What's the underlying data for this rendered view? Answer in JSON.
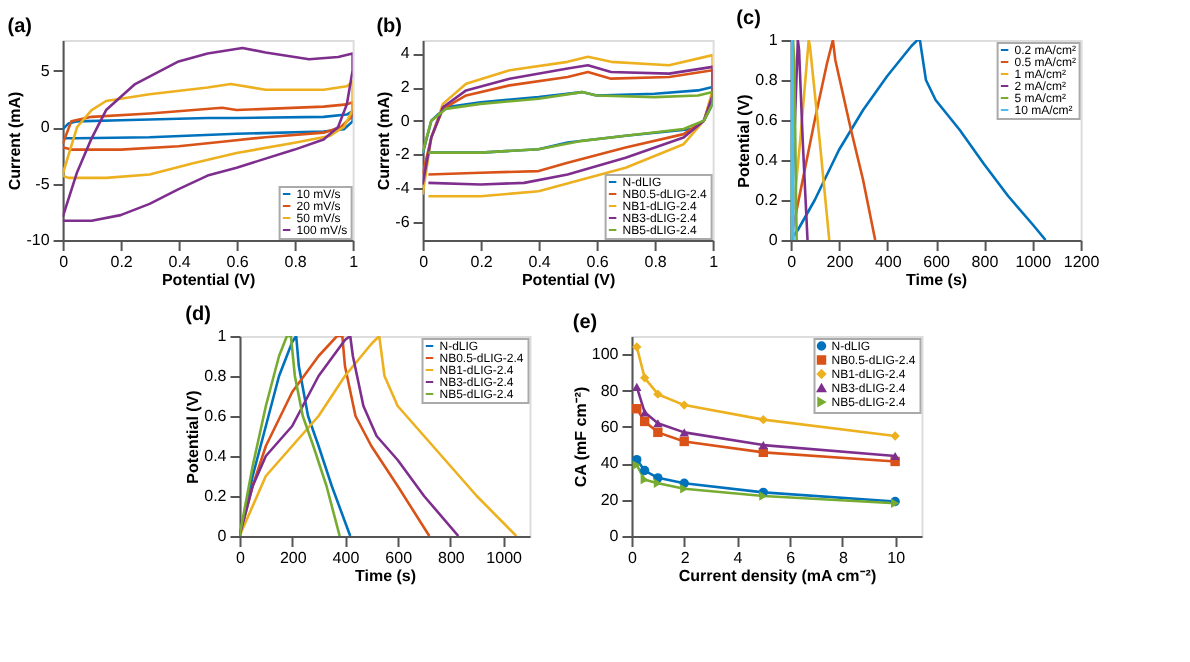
{
  "chart_data": [
    {
      "type": "line",
      "title": "(a)",
      "xlabel": "Potential (V)",
      "ylabel": "Current (mA)",
      "xlim": [
        0,
        1
      ],
      "xticks": [
        0,
        0.2,
        0.4,
        0.6,
        0.8,
        1
      ],
      "ylim": [
        -10,
        7.7
      ],
      "yticks": [
        -10,
        -5,
        0,
        5
      ],
      "legend": "bottom right",
      "series": [
        {
          "name": "10 mV/s",
          "color": "#0072bd",
          "x": [
            0,
            0.02,
            0.05,
            0.2,
            0.5,
            0.6,
            0.9,
            0.98,
            1,
            1,
            0.97,
            0.9,
            0.6,
            0.3,
            0.05,
            0
          ],
          "values": [
            -0.2,
            0.3,
            0.5,
            0.6,
            0.8,
            0.8,
            0.9,
            1.1,
            1.4,
            0.5,
            -0.2,
            -0.4,
            -0.6,
            -0.9,
            -1.0,
            -1.0
          ]
        },
        {
          "name": "20 mV/s",
          "color": "#d95319",
          "x": [
            0,
            0.03,
            0.1,
            0.3,
            0.55,
            0.6,
            0.9,
            0.98,
            1,
            1,
            0.96,
            0.9,
            0.7,
            0.55,
            0.4,
            0.2,
            0.03,
            0
          ],
          "values": [
            -1.5,
            0.5,
            0.9,
            1.2,
            1.7,
            1.5,
            1.8,
            2.0,
            2.2,
            1.0,
            0,
            -0.5,
            -0.9,
            -1.3,
            -1.7,
            -2.0,
            -2.0,
            -1.8
          ]
        },
        {
          "name": "50 mV/s",
          "color": "#edb120",
          "x": [
            0,
            0.05,
            0.1,
            0.15,
            0.3,
            0.5,
            0.58,
            0.7,
            0.9,
            0.98,
            1,
            1,
            0.97,
            0.92,
            0.8,
            0.6,
            0.45,
            0.3,
            0.15,
            0.02,
            0
          ],
          "values": [
            -4.2,
            0,
            1.5,
            2.3,
            2.9,
            3.5,
            3.8,
            3.3,
            3.3,
            3.6,
            4.0,
            1.5,
            0,
            -0.8,
            -1.4,
            -2.3,
            -3.2,
            -4.2,
            -4.5,
            -4.5,
            -4.3
          ]
        },
        {
          "name": "100 mV/s",
          "color": "#7e2f8e",
          "x": [
            0,
            0.05,
            0.1,
            0.15,
            0.25,
            0.4,
            0.5,
            0.62,
            0.7,
            0.85,
            0.95,
            1,
            1,
            0.98,
            0.95,
            0.9,
            0.8,
            0.6,
            0.5,
            0.4,
            0.3,
            0.2,
            0.1,
            0
          ],
          "values": [
            -8.0,
            -4,
            -1,
            1.5,
            3.8,
            5.8,
            6.5,
            7.0,
            6.6,
            6.0,
            6.2,
            6.5,
            5,
            2,
            0,
            -1.1,
            -2.0,
            -3.6,
            -4.3,
            -5.5,
            -6.8,
            -7.8,
            -8.3,
            -8.3
          ]
        }
      ]
    },
    {
      "type": "line",
      "title": "(b)",
      "xlabel": "Potential (V)",
      "ylabel": "Current (mA)",
      "xlim": [
        0,
        1
      ],
      "xticks": [
        0,
        0.2,
        0.4,
        0.6,
        0.8,
        1
      ],
      "ylim": [
        -7.1,
        4.8
      ],
      "yticks": [
        -6,
        -4,
        -2,
        0,
        2,
        4
      ],
      "legend": "bottom right",
      "series": [
        {
          "name": "N-dLIG",
          "color": "#0072bd",
          "x": [
            0,
            0.03,
            0.08,
            0.2,
            0.4,
            0.55,
            0.6,
            0.8,
            0.95,
            1,
            1,
            0.97,
            0.93,
            0.7,
            0.5,
            0.4,
            0.2,
            0.02
          ],
          "values": [
            -2,
            0,
            0.8,
            1.1,
            1.4,
            1.7,
            1.5,
            1.6,
            1.8,
            2.0,
            1,
            0,
            -0.5,
            -0.9,
            -1.3,
            -1.7,
            -1.9,
            -1.9
          ]
        },
        {
          "name": "NB0.5-dLIG-2.4",
          "color": "#d95319",
          "x": [
            0,
            0.03,
            0.07,
            0.15,
            0.3,
            0.5,
            0.57,
            0.65,
            0.85,
            1,
            1,
            0.97,
            0.9,
            0.7,
            0.5,
            0.4,
            0.2,
            0.02
          ],
          "values": [
            -3.2,
            -1,
            0.7,
            1.5,
            2.1,
            2.6,
            2.9,
            2.5,
            2.6,
            3.0,
            1.5,
            0,
            -0.8,
            -1.6,
            -2.5,
            -3.0,
            -3.1,
            -3.2
          ]
        },
        {
          "name": "NB1-dLIG-2.4",
          "color": "#edb120",
          "x": [
            0,
            0.03,
            0.07,
            0.15,
            0.3,
            0.5,
            0.57,
            0.65,
            0.85,
            1,
            1,
            0.97,
            0.9,
            0.7,
            0.55,
            0.4,
            0.2,
            0.02
          ],
          "values": [
            -4.4,
            -1,
            1,
            2.2,
            3.0,
            3.5,
            3.8,
            3.5,
            3.3,
            3.9,
            1.8,
            0,
            -1.4,
            -2.8,
            -3.5,
            -4.2,
            -4.5,
            -4.5
          ]
        },
        {
          "name": "NB3-dLIG-2.4",
          "color": "#7e2f8e",
          "x": [
            0,
            0.03,
            0.07,
            0.15,
            0.3,
            0.5,
            0.57,
            0.65,
            0.85,
            1,
            1,
            0.97,
            0.9,
            0.7,
            0.5,
            0.35,
            0.2,
            0.02
          ],
          "values": [
            -3.8,
            -1,
            0.8,
            1.8,
            2.5,
            3.1,
            3.3,
            2.9,
            2.8,
            3.2,
            1.5,
            0,
            -1.0,
            -2.2,
            -3.2,
            -3.7,
            -3.8,
            -3.7
          ]
        },
        {
          "name": "NB5-dLIG-2.4",
          "color": "#77ac30",
          "x": [
            0,
            0.03,
            0.08,
            0.2,
            0.4,
            0.55,
            0.6,
            0.8,
            0.95,
            1,
            1,
            0.97,
            0.9,
            0.7,
            0.55,
            0.4,
            0.2,
            0.02
          ],
          "values": [
            -1.9,
            0,
            0.7,
            1.0,
            1.3,
            1.7,
            1.5,
            1.4,
            1.5,
            1.7,
            1,
            0,
            -0.5,
            -0.9,
            -1.2,
            -1.7,
            -1.9,
            -1.9
          ]
        }
      ]
    },
    {
      "type": "line",
      "title": "(c)",
      "xlabel": "Time (s)",
      "ylabel": "Potential (V)",
      "xlim": [
        0,
        1200
      ],
      "xticks": [
        0,
        200,
        400,
        600,
        800,
        1000,
        1200
      ],
      "ylim": [
        0,
        1
      ],
      "yticks": [
        0,
        0.2,
        0.4,
        0.6,
        0.8,
        1
      ],
      "legend": "top right",
      "series": [
        {
          "name": "0.2 mA/cm²",
          "color": "#0072bd",
          "x": [
            0,
            30,
            100,
            200,
            300,
            400,
            500,
            525,
            535,
            560,
            600,
            700,
            800,
            900,
            1000,
            1055
          ],
          "values": [
            0,
            0.05,
            0.2,
            0.45,
            0.65,
            0.82,
            0.97,
            1,
            1,
            0.8,
            0.7,
            0.55,
            0.38,
            0.22,
            0.08,
            0
          ]
        },
        {
          "name": "0.5 mA/cm²",
          "color": "#d95319",
          "x": [
            0,
            50,
            100,
            150,
            175,
            185,
            250,
            300,
            350
          ],
          "values": [
            0,
            0.3,
            0.6,
            0.88,
            1,
            0.9,
            0.55,
            0.3,
            0
          ]
        },
        {
          "name": "1 mA/cm²",
          "color": "#edb120",
          "x": [
            0,
            40,
            75,
            80,
            120,
            160
          ],
          "values": [
            0,
            0.5,
            1,
            0.97,
            0.5,
            0
          ]
        },
        {
          "name": "2 mA/cm²",
          "color": "#7e2f8e",
          "x": [
            0,
            30,
            35,
            50,
            70
          ],
          "values": [
            0,
            1,
            0.95,
            0.5,
            0
          ]
        },
        {
          "name": "5 mA/cm²",
          "color": "#77ac30",
          "x": [
            0,
            10,
            15,
            25
          ],
          "values": [
            0,
            1,
            0.9,
            0
          ]
        },
        {
          "name": "10 mA/cm²",
          "color": "#4dbeee",
          "x": [
            0,
            5,
            8,
            12
          ],
          "values": [
            0,
            1,
            0.9,
            0
          ]
        }
      ]
    },
    {
      "type": "line",
      "title": "(d)",
      "xlabel": "Time (s)",
      "ylabel": "Potential (V)",
      "xlim": [
        0,
        1100
      ],
      "xticks": [
        0,
        200,
        400,
        600,
        800,
        1000
      ],
      "ylim": [
        0,
        1
      ],
      "yticks": [
        0,
        0.2,
        0.4,
        0.6,
        0.8,
        1
      ],
      "legend": "top right",
      "series": [
        {
          "name": "N-dLIG",
          "color": "#0072bd",
          "x": [
            0,
            50,
            100,
            150,
            200,
            215,
            225,
            260,
            300,
            350,
            420
          ],
          "values": [
            0,
            0.3,
            0.55,
            0.8,
            0.97,
            1,
            0.85,
            0.6,
            0.45,
            0.25,
            0
          ]
        },
        {
          "name": "NB0.5-dLIG-2.4",
          "color": "#d95319",
          "x": [
            0,
            50,
            100,
            200,
            300,
            370,
            390,
            400,
            440,
            500,
            600,
            720
          ],
          "values": [
            0,
            0.25,
            0.45,
            0.72,
            0.9,
            1,
            1,
            0.85,
            0.6,
            0.45,
            0.25,
            0
          ]
        },
        {
          "name": "NB1-dLIG-2.4",
          "color": "#edb120",
          "x": [
            0,
            100,
            200,
            300,
            400,
            500,
            530,
            550,
            600,
            700,
            800,
            900,
            1050
          ],
          "values": [
            0,
            0.3,
            0.45,
            0.6,
            0.8,
            0.96,
            1,
            0.8,
            0.65,
            0.5,
            0.35,
            0.2,
            0
          ]
        },
        {
          "name": "NB3-dLIG-2.4",
          "color": "#7e2f8e",
          "x": [
            0,
            50,
            100,
            200,
            300,
            400,
            420,
            430,
            470,
            520,
            600,
            700,
            830
          ],
          "values": [
            0,
            0.25,
            0.4,
            0.55,
            0.8,
            0.98,
            1,
            0.9,
            0.65,
            0.5,
            0.38,
            0.2,
            0
          ]
        },
        {
          "name": "NB5-dLIG-2.4",
          "color": "#77ac30",
          "x": [
            0,
            50,
            100,
            150,
            180,
            195,
            210,
            240,
            280,
            330,
            380
          ],
          "values": [
            0,
            0.35,
            0.65,
            0.9,
            1,
            1,
            0.8,
            0.6,
            0.45,
            0.25,
            0
          ]
        }
      ]
    },
    {
      "type": "line",
      "title": "(e)",
      "xlabel": "Current density (mA cm⁻²)",
      "ylabel": "CA (mF cm⁻²)",
      "xlim": [
        0,
        11
      ],
      "xticks": [
        0,
        2,
        4,
        6,
        8,
        10
      ],
      "ylim": [
        0,
        110
      ],
      "yticks": [
        0,
        20,
        40,
        60,
        80,
        100
      ],
      "legend": "top right",
      "series": [
        {
          "name": "N-dLIG",
          "color": "#0072bd",
          "marker": "circle",
          "x": [
            0.2,
            0.5,
            1,
            2,
            5,
            10
          ],
          "values": [
            42,
            36,
            32,
            29,
            24,
            19
          ]
        },
        {
          "name": "NB0.5-dLIG-2.4",
          "color": "#d95319",
          "marker": "square",
          "x": [
            0.2,
            0.5,
            1,
            2,
            5,
            10
          ],
          "values": [
            70,
            63,
            57,
            52,
            46,
            41
          ]
        },
        {
          "name": "NB1-dLIG-2.4",
          "color": "#edb120",
          "marker": "diamond",
          "x": [
            0.2,
            0.5,
            1,
            2,
            5,
            10
          ],
          "values": [
            104,
            87,
            78,
            72,
            64,
            55
          ]
        },
        {
          "name": "NB3-dLIG-2.4",
          "color": "#7e2f8e",
          "marker": "triangle",
          "x": [
            0.2,
            0.5,
            1,
            2,
            5,
            10
          ],
          "values": [
            82,
            68,
            62,
            57,
            50,
            44
          ]
        },
        {
          "name": "NB5-dLIG-2.4",
          "color": "#77ac30",
          "marker": "triangle-right",
          "x": [
            0.2,
            0.5,
            1,
            2,
            5,
            10
          ],
          "values": [
            39,
            31,
            29,
            26,
            22,
            18
          ]
        }
      ]
    }
  ]
}
